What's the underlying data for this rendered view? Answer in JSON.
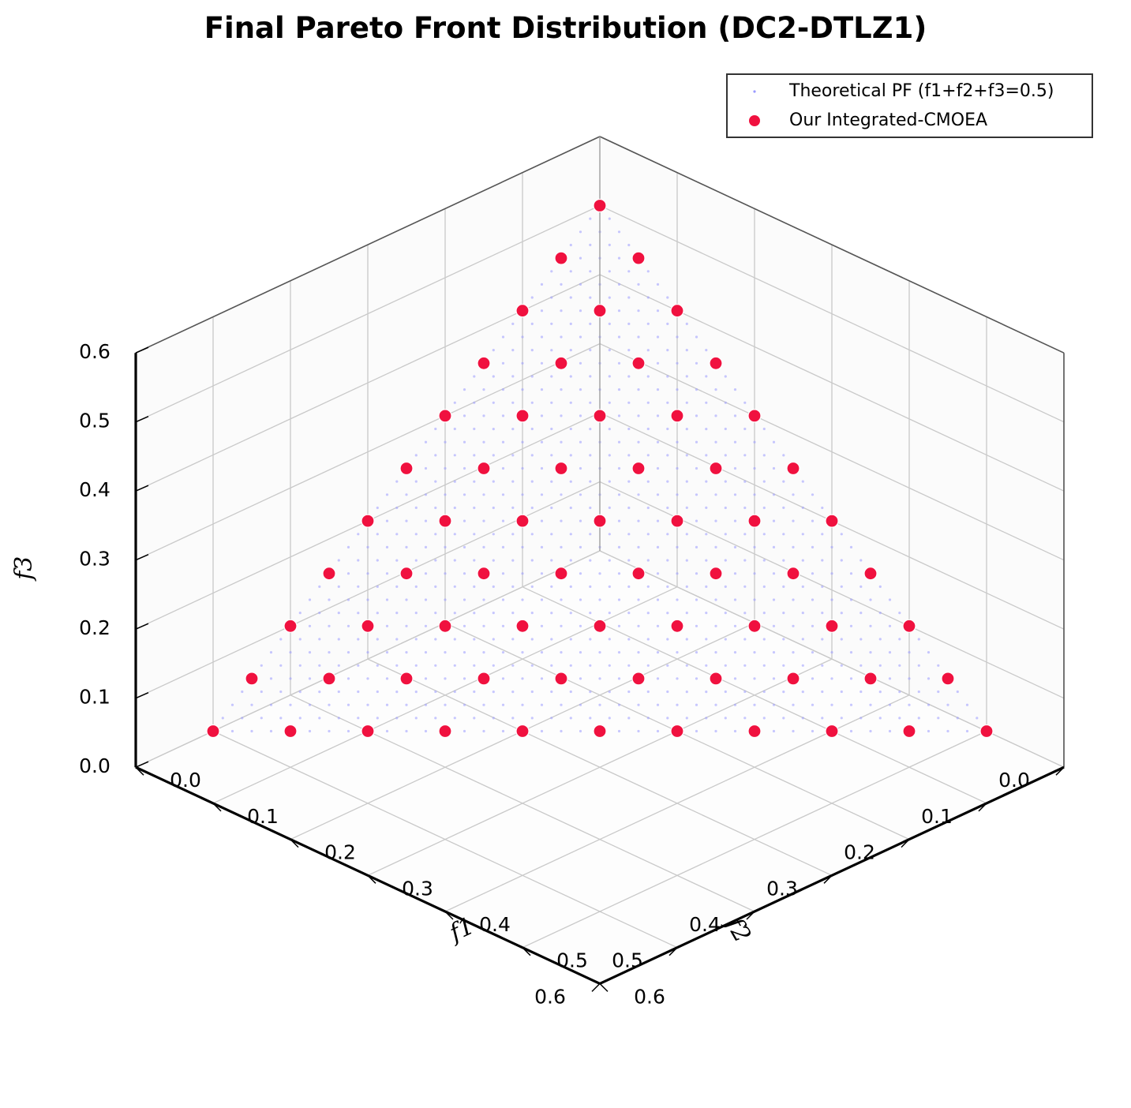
{
  "chart_data": {
    "type": "scatter",
    "title": "Final Pareto Front Distribution (DC2-DTLZ1)",
    "xlabel": "f1",
    "ylabel": "f2",
    "zlabel": "f3",
    "xlim": [
      0,
      0.6
    ],
    "ylim": [
      0,
      0.6
    ],
    "zlim": [
      0,
      0.6
    ],
    "x_ticks": [
      "0.0",
      "0.1",
      "0.2",
      "0.3",
      "0.4",
      "0.5",
      "0.6"
    ],
    "y_ticks": [
      "0.0",
      "0.1",
      "0.2",
      "0.3",
      "0.4",
      "0.5",
      "0.6"
    ],
    "z_ticks": [
      "0.0",
      "0.1",
      "0.2",
      "0.3",
      "0.4",
      "0.5",
      "0.6"
    ],
    "grid": true,
    "legend_position": "top-right",
    "series": [
      {
        "name": "Theoretical PF (f1+f2+f3=0.5)",
        "kind": "surface-points",
        "plane_sum": 0.5,
        "color": "#6b6bff"
      },
      {
        "name": "Our Integrated-CMOEA",
        "kind": "points",
        "color": "#f0113f",
        "points": [
          [
            0.0,
            0.0,
            0.5
          ],
          [
            0.05,
            0.0,
            0.45
          ],
          [
            0.1,
            0.0,
            0.4
          ],
          [
            0.15,
            0.0,
            0.35
          ],
          [
            0.2,
            0.0,
            0.3
          ],
          [
            0.25,
            0.0,
            0.25
          ],
          [
            0.3,
            0.0,
            0.2
          ],
          [
            0.35,
            0.0,
            0.15
          ],
          [
            0.4,
            0.0,
            0.1
          ],
          [
            0.45,
            0.0,
            0.05
          ],
          [
            0.5,
            0.0,
            0.0
          ],
          [
            0.0,
            0.05,
            0.45
          ],
          [
            0.05,
            0.05,
            0.4
          ],
          [
            0.1,
            0.05,
            0.35
          ],
          [
            0.15,
            0.05,
            0.3
          ],
          [
            0.2,
            0.05,
            0.25
          ],
          [
            0.25,
            0.05,
            0.2
          ],
          [
            0.3,
            0.05,
            0.15
          ],
          [
            0.35,
            0.05,
            0.1
          ],
          [
            0.4,
            0.05,
            0.05
          ],
          [
            0.45,
            0.05,
            0.0
          ],
          [
            0.0,
            0.1,
            0.4
          ],
          [
            0.05,
            0.1,
            0.35
          ],
          [
            0.1,
            0.1,
            0.3
          ],
          [
            0.15,
            0.1,
            0.25
          ],
          [
            0.2,
            0.1,
            0.2
          ],
          [
            0.25,
            0.1,
            0.15
          ],
          [
            0.3,
            0.1,
            0.1
          ],
          [
            0.35,
            0.1,
            0.05
          ],
          [
            0.4,
            0.1,
            0.0
          ],
          [
            0.0,
            0.15,
            0.35
          ],
          [
            0.05,
            0.15,
            0.3
          ],
          [
            0.1,
            0.15,
            0.25
          ],
          [
            0.15,
            0.15,
            0.2
          ],
          [
            0.2,
            0.15,
            0.15
          ],
          [
            0.25,
            0.15,
            0.1
          ],
          [
            0.3,
            0.15,
            0.05
          ],
          [
            0.35,
            0.15,
            0.0
          ],
          [
            0.0,
            0.2,
            0.3
          ],
          [
            0.05,
            0.2,
            0.25
          ],
          [
            0.1,
            0.2,
            0.2
          ],
          [
            0.15,
            0.2,
            0.15
          ],
          [
            0.2,
            0.2,
            0.1
          ],
          [
            0.25,
            0.2,
            0.05
          ],
          [
            0.3,
            0.2,
            0.0
          ],
          [
            0.0,
            0.25,
            0.25
          ],
          [
            0.05,
            0.25,
            0.2
          ],
          [
            0.1,
            0.25,
            0.15
          ],
          [
            0.15,
            0.25,
            0.1
          ],
          [
            0.2,
            0.25,
            0.05
          ],
          [
            0.25,
            0.25,
            0.0
          ],
          [
            0.0,
            0.3,
            0.2
          ],
          [
            0.05,
            0.3,
            0.15
          ],
          [
            0.1,
            0.3,
            0.1
          ],
          [
            0.15,
            0.3,
            0.05
          ],
          [
            0.2,
            0.3,
            0.0
          ],
          [
            0.0,
            0.35,
            0.15
          ],
          [
            0.05,
            0.35,
            0.1
          ],
          [
            0.1,
            0.35,
            0.05
          ],
          [
            0.15,
            0.35,
            0.0
          ],
          [
            0.0,
            0.4,
            0.1
          ],
          [
            0.05,
            0.4,
            0.05
          ],
          [
            0.1,
            0.4,
            0.0
          ],
          [
            0.0,
            0.45,
            0.05
          ],
          [
            0.05,
            0.45,
            0.0
          ],
          [
            0.0,
            0.5,
            0.0
          ]
        ]
      }
    ]
  }
}
